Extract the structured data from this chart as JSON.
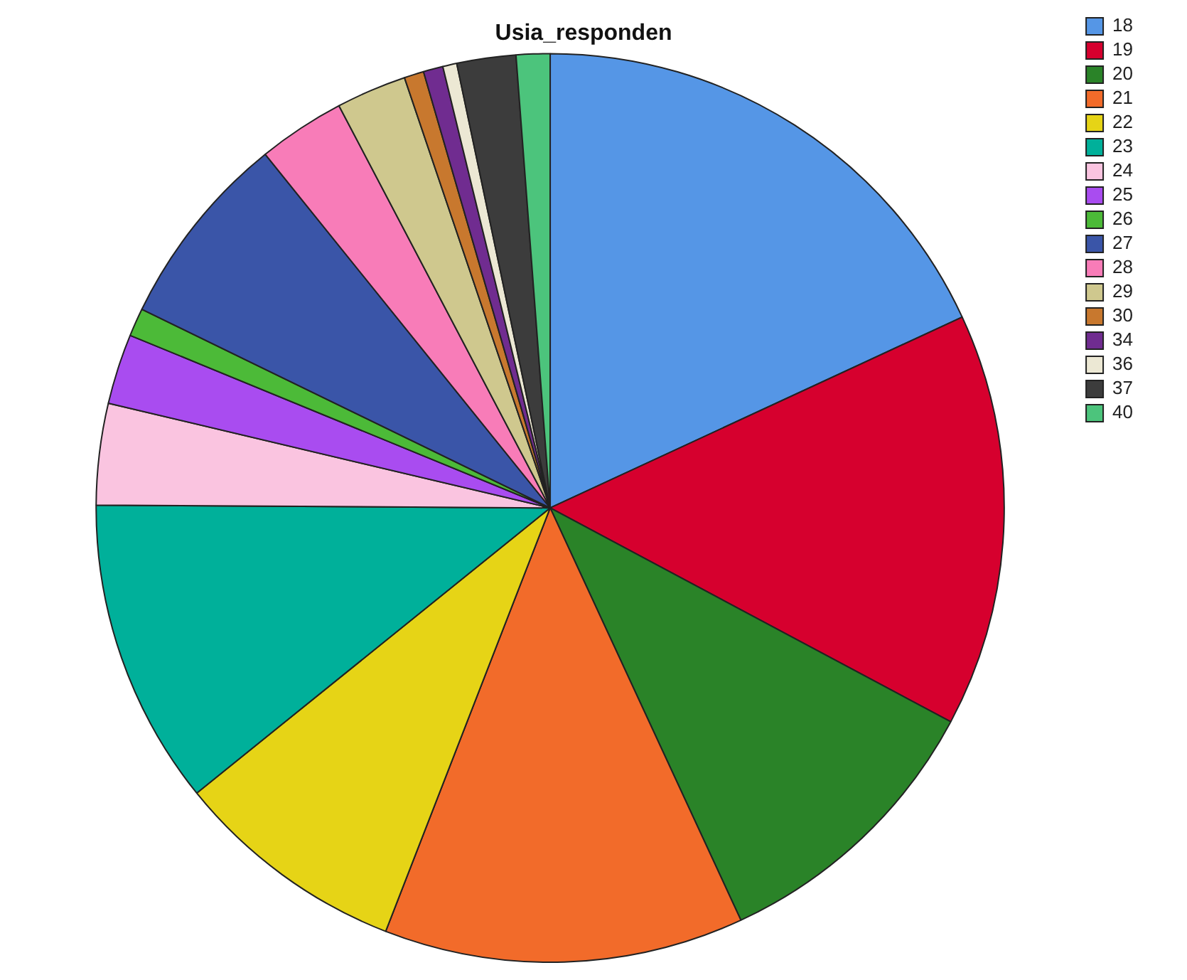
{
  "chart_data": {
    "type": "pie",
    "title": "Usia_responden",
    "categories": [
      "18",
      "19",
      "20",
      "21",
      "22",
      "23",
      "24",
      "25",
      "26",
      "27",
      "28",
      "29",
      "30",
      "34",
      "36",
      "37",
      "40"
    ],
    "values": [
      18.1,
      14.7,
      10.3,
      12.8,
      8.3,
      10.9,
      3.6,
      2.5,
      1.0,
      7.0,
      3.1,
      2.5,
      0.7,
      0.7,
      0.5,
      2.1,
      1.2
    ],
    "colors": [
      "#5596e6",
      "#d6002e",
      "#2a8328",
      "#f26b2a",
      "#e6d416",
      "#00b09a",
      "#fac4e0",
      "#a94cf0",
      "#4cba38",
      "#3a55a8",
      "#f87cb8",
      "#cfc88e",
      "#c8782e",
      "#702c90",
      "#ece8d4",
      "#3c3c3c",
      "#4cc47c"
    ],
    "legend": "top right"
  }
}
